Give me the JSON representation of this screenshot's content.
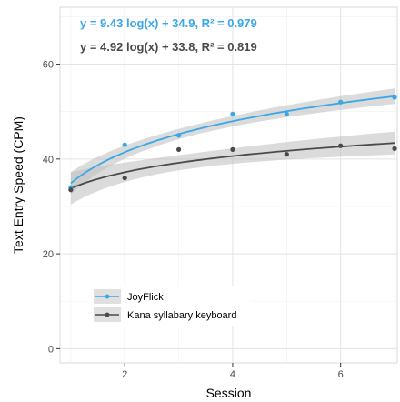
{
  "chart_data": {
    "type": "scatter",
    "xlabel": "Session",
    "ylabel": "Text Entry Speed (CPM)",
    "xlim": [
      0.8,
      7.05
    ],
    "ylim": [
      -3,
      72
    ],
    "x_ticks": [
      2,
      4,
      6
    ],
    "y_ticks": [
      0,
      20,
      40,
      60
    ],
    "x_tick_labels": [
      "2",
      "4",
      "6"
    ],
    "y_tick_labels": [
      "0",
      "20",
      "40",
      "60"
    ],
    "grid": true,
    "legend_position": "bottom-left",
    "series": [
      {
        "name": "JoyFlick",
        "color": "#3aa7e6",
        "x": [
          1,
          2,
          3,
          4,
          5,
          6,
          7
        ],
        "y": [
          34.0,
          43.0,
          45.0,
          49.5,
          49.5,
          52.0,
          53.0
        ],
        "fit": {
          "coef": 9.43,
          "intercept": 34.9,
          "r2": 0.979
        },
        "equation_label": "y = 9.43 log(x) + 34.9, R² = 0.979"
      },
      {
        "name": "Kana syllabary keyboard",
        "color": "#4a4a4a",
        "x": [
          1,
          2,
          3,
          4,
          5,
          6,
          7
        ],
        "y": [
          33.5,
          36.0,
          42.0,
          42.0,
          41.0,
          42.8,
          42.2
        ],
        "fit": {
          "coef": 4.92,
          "intercept": 33.8,
          "r2": 0.819
        },
        "equation_label": "y = 4.92 log(x) + 33.8, R² = 0.819"
      }
    ]
  }
}
